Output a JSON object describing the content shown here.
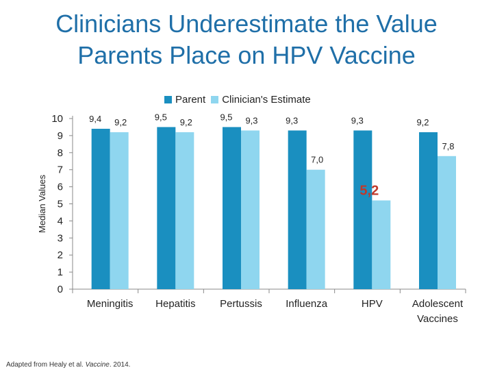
{
  "title_line1": "Clinicians Underestimate the Value",
  "title_line2": "Parents Place on HPV Vaccine",
  "colors": {
    "parent": "#1a8fc0",
    "clinician": "#8fd6ef",
    "title": "#1f6fa8",
    "highlight": "#c0392b"
  },
  "footnote": {
    "prefix": "Adapted from Healy et al.",
    "journal": "Vaccine",
    "suffix": ". 2014."
  },
  "chart_data": {
    "type": "bar",
    "title": "Clinicians Underestimate the Value Parents Place on HPV Vaccine",
    "xlabel": "",
    "ylabel": "Median Values",
    "ylim": [
      0,
      10
    ],
    "yticks": [
      "0",
      "1",
      "2",
      "3",
      "4",
      "5",
      "6",
      "7",
      "8",
      "9",
      "10"
    ],
    "categories": [
      "Meningitis",
      "Hepatitis",
      "Pertussis",
      "Influenza",
      "HPV",
      "Adolescent Vaccines"
    ],
    "category_labels": [
      [
        "Meningitis"
      ],
      [
        "Hepatitis"
      ],
      [
        "Pertussis"
      ],
      [
        "Influenza"
      ],
      [
        "HPV"
      ],
      [
        "Adolescent",
        "Vaccines"
      ]
    ],
    "series": [
      {
        "name": "Parent",
        "values": [
          9.4,
          9.5,
          9.5,
          9.3,
          9.3,
          9.2
        ],
        "labels": [
          "9,4",
          "9,5",
          "9,5",
          "9,3",
          "9,3",
          "9,2"
        ]
      },
      {
        "name": "Clinician's Estimate",
        "values": [
          9.2,
          9.2,
          9.3,
          7.0,
          5.2,
          7.8
        ],
        "labels": [
          "9,2",
          "9,2",
          "9,3",
          "7,0",
          "5,2",
          "7,8"
        ]
      }
    ],
    "highlight": {
      "series": 1,
      "category": 4
    },
    "legend": "top-center"
  }
}
